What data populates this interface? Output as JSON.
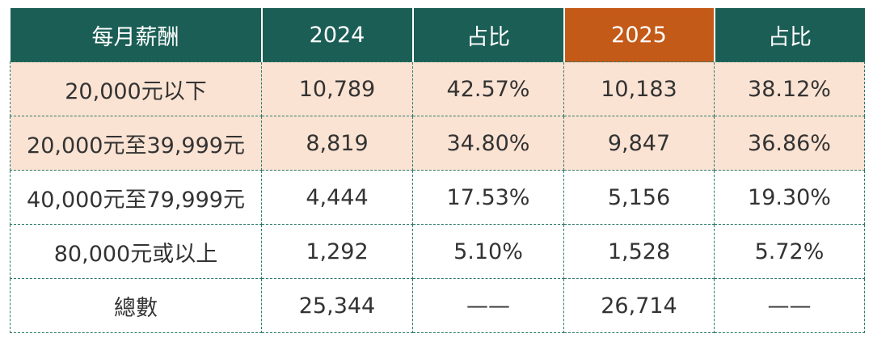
{
  "table": {
    "header": [
      "每月薪酬",
      "2024",
      "占比",
      "2025",
      "占比"
    ],
    "rows": [
      [
        "20,000元以下",
        "10,789",
        "42.57%",
        "10,183",
        "38.12%"
      ],
      [
        "20,000元至39,999元",
        "8,819",
        "34.80%",
        "9,847",
        "36.86%"
      ],
      [
        "40,000元至79,999元",
        "4,444",
        "17.53%",
        "5,156",
        "19.30%"
      ],
      [
        "80,000元或以上",
        "1,292",
        "5.10%",
        "1,528",
        "5.72%"
      ],
      [
        "總數",
        "25,344",
        "——",
        "26,714",
        "——"
      ]
    ]
  }
}
